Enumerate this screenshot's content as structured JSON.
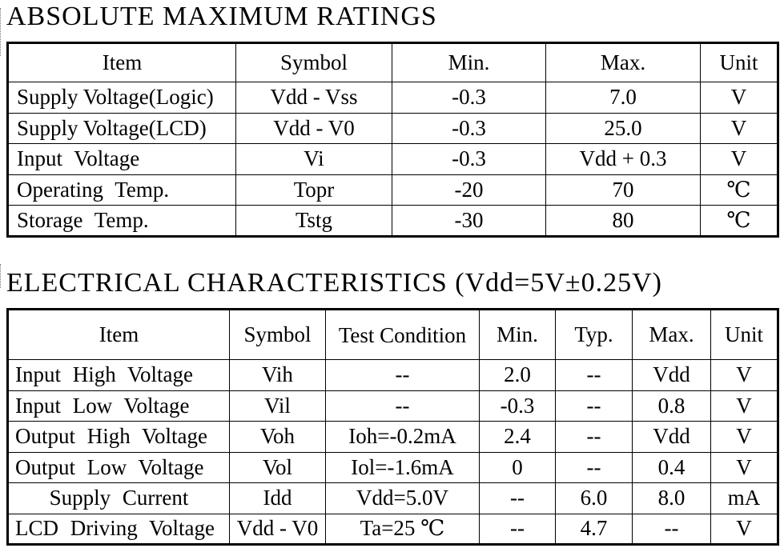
{
  "absolute_maximum_ratings": {
    "title": "ABSOLUTE  MAXIMUM  RATINGS",
    "headers": [
      "Item",
      "Symbol",
      "Min.",
      "Max.",
      "Unit"
    ],
    "rows": [
      [
        "Supply Voltage(Logic)",
        "Vdd - Vss",
        "-0.3",
        "7.0",
        "V"
      ],
      [
        "Supply Voltage(LCD)",
        "Vdd - V0",
        "-0.3",
        "25.0",
        "V"
      ],
      [
        "Input  Voltage",
        "Vi",
        "-0.3",
        "Vdd + 0.3",
        "V"
      ],
      [
        "Operating  Temp.",
        "Topr",
        "-20",
        "70",
        "℃"
      ],
      [
        "Storage  Temp.",
        "Tstg",
        "-30",
        "80",
        "℃"
      ]
    ]
  },
  "electrical_characteristics": {
    "title": "ELECTRICAL  CHARACTERISTICS (Vdd=5V±0.25V)",
    "headers": [
      "Item",
      "Symbol",
      "Test Condition",
      "Min.",
      "Typ.",
      "Max.",
      "Unit"
    ],
    "rows": [
      [
        "Input  High  Voltage",
        "Vih",
        "--",
        "2.0",
        "--",
        "Vdd",
        "V"
      ],
      [
        "Input  Low  Voltage",
        "Vil",
        "--",
        "-0.3",
        "--",
        "0.8",
        "V"
      ],
      [
        "Output  High  Voltage",
        "Voh",
        "Ioh=-0.2mA",
        "2.4",
        "--",
        "Vdd",
        "V"
      ],
      [
        "Output  Low  Voltage",
        "Vol",
        "Iol=-1.6mA",
        "0",
        "--",
        "0.4",
        "V"
      ],
      [
        "Supply  Current",
        "Idd",
        "Vdd=5.0V",
        "--",
        "6.0",
        "8.0",
        "mA"
      ],
      [
        "LCD  Driving  Voltage",
        "Vdd - V0",
        "Ta=25 ℃",
        "--",
        "4.7",
        "--",
        "V"
      ]
    ]
  }
}
